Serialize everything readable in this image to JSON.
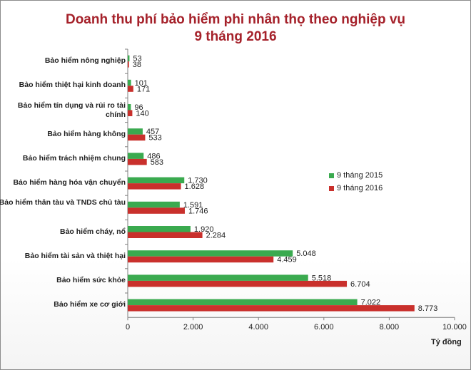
{
  "chart_data": {
    "type": "bar",
    "orientation": "horizontal",
    "title_line1": "Doanh thu phí bảo hiểm phi nhân thọ theo nghiệp vụ",
    "title_line2": "9 tháng 2016",
    "categories": [
      "Bảo hiểm nông nghiệp",
      "Bảo hiểm thiệt hại kinh doanh",
      "Bảo hiểm tín dụng và rủi ro tài chính",
      "Bảo hiểm hàng không",
      "Bảo hiểm trách nhiệm chung",
      "Bảo hiểm hàng hóa vận chuyển",
      "Bảo hiểm thân tàu và TNDS chủ tàu",
      "Bảo hiểm cháy, nổ",
      "Bảo hiểm tài sản và thiệt hại",
      "Bảo hiểm sức khỏe",
      "Bảo hiểm xe cơ giới"
    ],
    "series": [
      {
        "name": "9 tháng 2015",
        "color": "#3aaa4f",
        "values": [
          53,
          101,
          96,
          457,
          486,
          1730,
          1591,
          1920,
          5048,
          5518,
          7022
        ],
        "labels": [
          "53",
          "101",
          "96",
          "457",
          "486",
          "1.730",
          "1.591",
          "1.920",
          "5.048",
          "5.518",
          "7.022"
        ]
      },
      {
        "name": "9 tháng 2016",
        "color": "#c9302c",
        "values": [
          38,
          171,
          140,
          533,
          583,
          1628,
          1746,
          2284,
          4459,
          6704,
          8773
        ],
        "labels": [
          "38",
          "171",
          "140",
          "533",
          "583",
          "1.628",
          "1.746",
          "2.284",
          "4.459",
          "6.704",
          "8.773"
        ]
      }
    ],
    "xlim": [
      0,
      10000
    ],
    "xticks": [
      0,
      2000,
      4000,
      6000,
      8000,
      10000
    ],
    "xtick_labels": [
      "0",
      "2.000",
      "4.000",
      "6.000",
      "8.000",
      "10.000"
    ],
    "unit": "Tỷ đồng",
    "legend_position": "right",
    "grid": false
  }
}
